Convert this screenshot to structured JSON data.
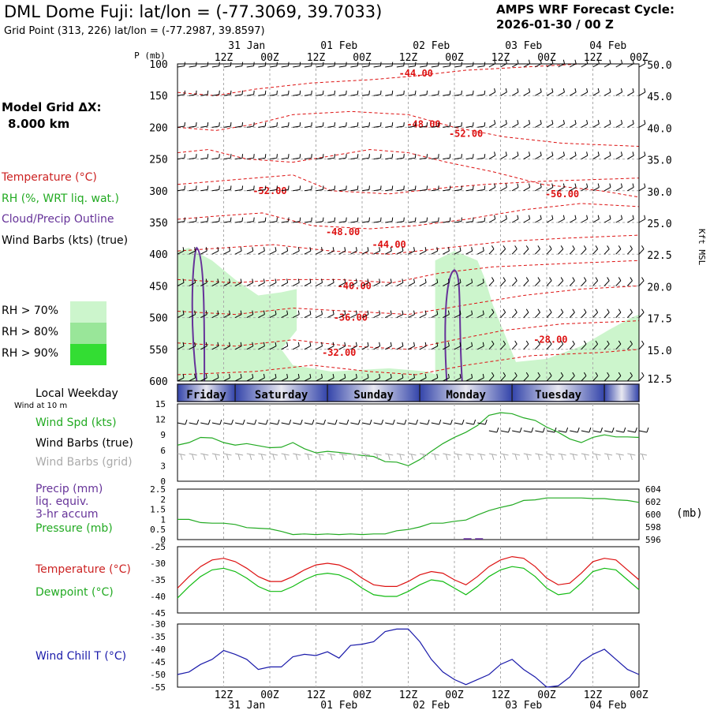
{
  "header": {
    "title": "DML Dome Fuji:  lat/lon = (-77.3069, 39.7033)",
    "subtitle": "Grid Point (313, 226) lat/lon = (-77.2987, 39.8597)",
    "cycle_title": "AMPS WRF Forecast Cycle:",
    "cycle_value": "2026-01-30 / 00  Z"
  },
  "left_legend": {
    "grid_label": "Model Grid ΔX:",
    "grid_value": "8.000 km",
    "temperature": "Temperature (°C)",
    "rh": "RH (%, WRT liq. wat.)",
    "cloud": "Cloud/Precip Outline",
    "wind": "Wind Barbs (kts) (true)",
    "rh_levels": [
      {
        "label": "RH > 70%",
        "color": "#ccf5cc"
      },
      {
        "label": "RH > 80%",
        "color": "#99e699"
      },
      {
        "label": "RH > 90%",
        "color": "#33dd33"
      }
    ]
  },
  "colors": {
    "temperature": "#dd1111",
    "dewpoint": "#11bb11",
    "windchill": "#1a1aaa",
    "wind_speed": "#22aa22",
    "pressure": "#22aa22",
    "cloud": "#663399",
    "grid_barbs": "#aaaaaa",
    "weekday_bar": "#3344aa"
  },
  "chart_data": [
    {
      "type": "heatmap",
      "panel": "vertical-cross-section",
      "ylabel": "P (mb)",
      "ylabel_right": "Kft MSL",
      "ylim": [
        600,
        100
      ],
      "y_ticks": [
        100,
        150,
        200,
        250,
        300,
        350,
        400,
        450,
        500,
        550,
        600
      ],
      "right_ticks": [
        "50.0",
        "45.0",
        "40.0",
        "35.0",
        "30.0",
        "25.0",
        "22.5",
        "20.0",
        "17.5",
        "15.0",
        "12.5"
      ],
      "top_time_ticks": [
        "12Z",
        "00Z",
        "12Z",
        "00Z",
        "12Z",
        "00Z",
        "12Z",
        "00Z",
        "12Z",
        "00Z"
      ],
      "top_date_ticks": [
        "31 Jan",
        "01 Feb",
        "02 Feb",
        "03 Feb",
        "04 Feb"
      ],
      "x_hours": [
        0,
        120
      ],
      "temperature_labels": [
        {
          "text": "-44.00",
          "hour": 62,
          "p": 115
        },
        {
          "text": "-48.00",
          "hour": 64,
          "p": 195
        },
        {
          "text": "-52.00",
          "hour": 75,
          "p": 210
        },
        {
          "text": "-52.00",
          "hour": 24,
          "p": 300
        },
        {
          "text": "-56.00",
          "hour": 100,
          "p": 305
        },
        {
          "text": "-48.00",
          "hour": 43,
          "p": 365
        },
        {
          "text": "-44.00",
          "hour": 55,
          "p": 385
        },
        {
          "text": "-40.00",
          "hour": 46,
          "p": 450
        },
        {
          "text": "-36.00",
          "hour": 45,
          "p": 500
        },
        {
          "text": "-32.00",
          "hour": 42,
          "p": 555
        },
        {
          "text": "-28.00",
          "hour": 97,
          "p": 535
        }
      ]
    },
    {
      "type": "line",
      "panel": "wind",
      "title": "Local Weekday",
      "subtitle": "Wind at 10 m",
      "weekdays": [
        "Friday",
        "Saturday",
        "Sunday",
        "Monday",
        "Tuesday"
      ],
      "labels": [
        "Wind Spd (kts)",
        "Wind Barbs (true)",
        "Wind Barbs (grid)"
      ],
      "ylim": [
        0,
        15
      ],
      "y_ticks": [
        0,
        3,
        6,
        9,
        12,
        15
      ],
      "x": [
        0,
        3,
        6,
        9,
        12,
        15,
        18,
        21,
        24,
        27,
        30,
        33,
        36,
        39,
        42,
        45,
        48,
        51,
        54,
        57,
        60,
        63,
        66,
        69,
        72,
        75,
        78,
        81,
        84,
        87,
        90,
        93,
        96,
        99,
        102,
        105,
        108,
        111,
        114,
        117,
        120
      ],
      "series": [
        {
          "name": "Wind Spd (kts)",
          "values": [
            7,
            7.5,
            8.5,
            8.4,
            7.5,
            7,
            7.3,
            6.9,
            6.5,
            6.6,
            7.5,
            6.3,
            5.5,
            5.8,
            5.6,
            5.3,
            5,
            4.8,
            3.8,
            3.7,
            3,
            4.2,
            5.8,
            7.3,
            8.5,
            9.5,
            10.8,
            12.8,
            13.3,
            13.1,
            12.3,
            11.8,
            10.5,
            9.5,
            8.2,
            7.5,
            8.5,
            9,
            8.6,
            8.6,
            8.5
          ]
        }
      ]
    },
    {
      "type": "line",
      "panel": "precip-pressure",
      "labels": [
        "Precip (mm)",
        "liq. equiv.",
        "3-hr accum",
        "Pressure (mb)"
      ],
      "left_ylim": [
        0,
        2.5
      ],
      "left_ticks": [
        0.0,
        0.5,
        1.0,
        1.5,
        2.0,
        2.5
      ],
      "right_ylim": [
        596,
        604
      ],
      "right_ticks": [
        596,
        598,
        600,
        602,
        604
      ],
      "right_unit": "(mb)",
      "x": [
        0,
        3,
        6,
        9,
        12,
        15,
        18,
        21,
        24,
        27,
        30,
        33,
        36,
        39,
        42,
        45,
        48,
        51,
        54,
        57,
        60,
        63,
        66,
        69,
        72,
        75,
        78,
        81,
        84,
        87,
        90,
        93,
        96,
        99,
        102,
        105,
        108,
        111,
        114,
        117,
        120
      ],
      "series": [
        {
          "name": "Pressure (mb)",
          "values": [
            599.2,
            599.2,
            598.7,
            598.6,
            598.6,
            598.4,
            597.9,
            597.8,
            597.7,
            597.3,
            596.8,
            596.9,
            596.8,
            596.9,
            596.8,
            596.9,
            596.8,
            596.9,
            596.9,
            597.4,
            597.6,
            598,
            598.6,
            598.6,
            598.9,
            599.1,
            599.9,
            600.6,
            601.1,
            601.5,
            602.2,
            602.3,
            602.6,
            602.6,
            602.6,
            602.6,
            602.5,
            602.5,
            602.3,
            602.2,
            601.9
          ]
        },
        {
          "name": "Precip (mm)",
          "values": [
            0,
            0,
            0,
            0,
            0,
            0,
            0,
            0,
            0,
            0,
            0,
            0,
            0,
            0,
            0,
            0,
            0,
            0,
            0,
            0,
            0,
            0,
            0,
            0,
            0,
            0.03,
            0.03,
            0,
            0,
            0,
            0,
            0,
            0,
            0,
            0,
            0,
            0,
            0,
            0,
            0,
            0
          ]
        }
      ]
    },
    {
      "type": "line",
      "panel": "temperature",
      "labels": [
        "Temperature (°C)",
        "Dewpoint (°C)"
      ],
      "ylim": [
        -45,
        -25
      ],
      "y_ticks": [
        -25,
        -30,
        -35,
        -40,
        -45
      ],
      "x": [
        0,
        3,
        6,
        9,
        12,
        15,
        18,
        21,
        24,
        27,
        30,
        33,
        36,
        39,
        42,
        45,
        48,
        51,
        54,
        57,
        60,
        63,
        66,
        69,
        72,
        75,
        78,
        81,
        84,
        87,
        90,
        93,
        96,
        99,
        102,
        105,
        108,
        111,
        114,
        117,
        120
      ],
      "series": [
        {
          "name": "Temperature (°C)",
          "values": [
            -37.5,
            -34,
            -31,
            -29,
            -28.5,
            -29.5,
            -31.5,
            -34,
            -35.5,
            -35.5,
            -34,
            -32,
            -30.5,
            -30,
            -30.5,
            -32,
            -34.5,
            -36.5,
            -37,
            -37,
            -35.5,
            -33.5,
            -32.5,
            -33,
            -35,
            -36.5,
            -34,
            -31,
            -29,
            -28,
            -28.5,
            -31,
            -34.5,
            -36.5,
            -36,
            -33,
            -29.5,
            -28.5,
            -29,
            -32,
            -35
          ]
        },
        {
          "name": "Dewpoint (°C)",
          "values": [
            -40.5,
            -37,
            -34,
            -32,
            -31.5,
            -32.5,
            -34.5,
            -37,
            -38.5,
            -38.5,
            -37,
            -35,
            -33.5,
            -33,
            -33.5,
            -35,
            -37.5,
            -39.5,
            -40,
            -40,
            -38.5,
            -36.5,
            -35,
            -35.5,
            -37.5,
            -39.5,
            -37,
            -34,
            -32,
            -31,
            -31.5,
            -34,
            -37.5,
            -39.5,
            -39,
            -36,
            -32.5,
            -31.5,
            -32,
            -35,
            -38
          ]
        }
      ]
    },
    {
      "type": "line",
      "panel": "windchill",
      "labels": [
        "Wind Chill T (°C)"
      ],
      "ylim": [
        -55,
        -30
      ],
      "y_ticks": [
        -30,
        -35,
        -40,
        -45,
        -50,
        -55
      ],
      "bottom_time_ticks": [
        "12Z",
        "00Z",
        "12Z",
        "00Z",
        "12Z",
        "00Z",
        "12Z",
        "00Z",
        "12Z",
        "00Z"
      ],
      "bottom_date_ticks": [
        "31 Jan",
        "01 Feb",
        "02 Feb",
        "03 Feb",
        "04 Feb"
      ],
      "x": [
        0,
        3,
        6,
        9,
        12,
        15,
        18,
        21,
        24,
        27,
        30,
        33,
        36,
        39,
        42,
        45,
        48,
        51,
        54,
        57,
        60,
        63,
        66,
        69,
        72,
        75,
        78,
        81,
        84,
        87,
        90,
        93,
        96,
        99,
        102,
        105,
        108,
        111,
        114,
        117,
        120
      ],
      "series": [
        {
          "name": "Wind Chill T (°C)",
          "values": [
            -50,
            -49,
            -46,
            -44,
            -40.5,
            -42,
            -44,
            -48,
            -47,
            -47,
            -43,
            -42,
            -42.5,
            -41,
            -43.5,
            -38.5,
            -38,
            -37,
            -33,
            -32,
            -32,
            -37,
            -44,
            -49,
            -52,
            -54,
            -52,
            -50,
            -46,
            -44,
            -48,
            -51,
            -55,
            -54.5,
            -51,
            -45,
            -42,
            -40,
            -44,
            -48,
            -50
          ]
        }
      ]
    }
  ]
}
